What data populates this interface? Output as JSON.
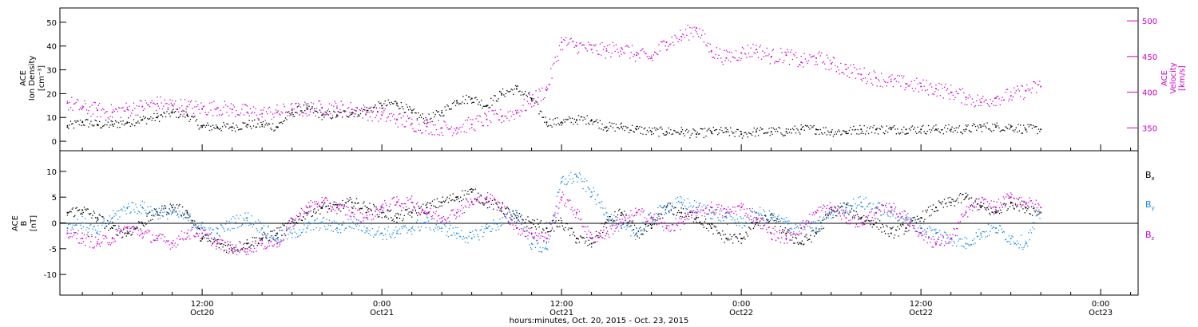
{
  "chart_data": [
    {
      "type": "scatter",
      "panel": "top",
      "title": "",
      "xlabel": "hours:minutes, Oct. 20, 2015 - Oct. 23, 2015",
      "x_unit": "hours since Oct 20 00:00",
      "x_ticks": [
        {
          "x": 12,
          "time": "12:00",
          "date": "Oct20"
        },
        {
          "x": 24,
          "time": "0:00",
          "date": "Oct21"
        },
        {
          "x": 36,
          "time": "12:00",
          "date": "Oct21"
        },
        {
          "x": 48,
          "time": "0:00",
          "date": "Oct22"
        },
        {
          "x": 60,
          "time": "12:00",
          "date": "Oct22"
        },
        {
          "x": 72,
          "time": "0:00",
          "date": "Oct23"
        }
      ],
      "xlim": [
        2.5,
        74.5
      ],
      "left_axis": {
        "label_lines": [
          "ACE",
          "Ion Density",
          "[cm⁻³]"
        ],
        "ylim": [
          -4,
          56
        ],
        "ticks": [
          0,
          10,
          20,
          30,
          40,
          50
        ],
        "color": "#000000"
      },
      "right_axis": {
        "label_lines": [
          "ACE",
          "Velocity",
          "[km/s]"
        ],
        "ylim": [
          318,
          518
        ],
        "ticks": [
          350,
          400,
          450,
          500
        ],
        "color": "#cc00cc"
      },
      "series": [
        {
          "name": "",
          "axis": "left",
          "color": "#000000",
          "x": [
            3,
            4,
            5,
            6,
            7,
            8,
            9,
            10,
            11,
            12,
            13,
            14,
            15,
            16,
            17,
            18,
            19,
            20,
            21,
            22,
            23,
            24,
            25,
            26,
            27,
            28,
            29,
            30,
            31,
            32,
            33,
            34,
            35,
            36,
            37,
            38,
            39,
            40,
            41,
            42,
            43,
            44,
            45,
            46,
            47,
            48,
            49,
            50,
            51,
            52,
            53,
            54,
            55,
            56,
            57,
            58,
            59,
            60,
            61,
            62,
            63,
            64,
            65,
            66,
            67,
            68
          ],
          "values": [
            6,
            8,
            7,
            7,
            8,
            9,
            10,
            12,
            11,
            6,
            6,
            6,
            7,
            7,
            6,
            12,
            14,
            11,
            11,
            12,
            13,
            15,
            16,
            12,
            9,
            12,
            17,
            18,
            15,
            20,
            22,
            18,
            8,
            8,
            9,
            9,
            6,
            6,
            5,
            4,
            4,
            4,
            3,
            4,
            4,
            3,
            4,
            4,
            4,
            5,
            5,
            4,
            4,
            5,
            5,
            5,
            5,
            5,
            5,
            5,
            5,
            6,
            6,
            6,
            5,
            5
          ]
        },
        {
          "name": "",
          "axis": "right",
          "color": "#cc00cc",
          "x": [
            3,
            4,
            5,
            6,
            7,
            8,
            9,
            10,
            11,
            12,
            13,
            14,
            15,
            16,
            17,
            18,
            19,
            20,
            21,
            22,
            23,
            24,
            25,
            26,
            27,
            28,
            29,
            30,
            31,
            32,
            33,
            34,
            35,
            36,
            37,
            38,
            39,
            40,
            41,
            42,
            43,
            44,
            45,
            46,
            47,
            48,
            49,
            50,
            51,
            52,
            53,
            54,
            55,
            56,
            57,
            58,
            59,
            60,
            61,
            62,
            63,
            64,
            65,
            66,
            67,
            68
          ],
          "values": [
            385,
            378,
            375,
            372,
            376,
            380,
            384,
            382,
            380,
            377,
            378,
            376,
            372,
            370,
            372,
            375,
            376,
            378,
            378,
            376,
            372,
            368,
            362,
            356,
            352,
            350,
            350,
            355,
            362,
            366,
            372,
            388,
            403,
            470,
            465,
            460,
            458,
            462,
            452,
            448,
            470,
            478,
            490,
            458,
            448,
            455,
            460,
            450,
            452,
            442,
            448,
            440,
            432,
            425,
            420,
            415,
            412,
            408,
            405,
            400,
            393,
            386,
            392,
            395,
            402,
            408
          ]
        }
      ]
    },
    {
      "type": "scatter",
      "panel": "bottom",
      "title": "",
      "xlabel": "hours:minutes, Oct. 20, 2015 - Oct. 23, 2015",
      "xlim": [
        2.5,
        74.5
      ],
      "left_axis": {
        "label_lines": [
          "ACE",
          "B",
          "[nT]"
        ],
        "ylim": [
          -14,
          14
        ],
        "ticks": [
          -10,
          -5,
          0,
          5,
          10
        ],
        "zero_line": true
      },
      "series": [
        {
          "name": "Bx",
          "color": "#000000",
          "x": [
            3,
            4,
            5,
            6,
            7,
            8,
            9,
            10,
            11,
            12,
            13,
            14,
            15,
            16,
            17,
            18,
            19,
            20,
            21,
            22,
            23,
            24,
            25,
            26,
            27,
            28,
            29,
            30,
            31,
            32,
            33,
            34,
            35,
            36,
            37,
            38,
            39,
            40,
            41,
            42,
            43,
            44,
            45,
            46,
            47,
            48,
            49,
            50,
            51,
            52,
            53,
            54,
            55,
            56,
            57,
            58,
            59,
            60,
            61,
            62,
            63,
            64,
            65,
            66,
            67,
            68
          ],
          "values": [
            2,
            2.5,
            1,
            -1,
            -2,
            0,
            2,
            3,
            2,
            -3,
            -4,
            -5,
            -4,
            -3,
            -2,
            0,
            2,
            3,
            3,
            4,
            3,
            2,
            1,
            2,
            3,
            4,
            5,
            6,
            4,
            3,
            1,
            0,
            -1,
            0,
            -3,
            -4,
            0,
            2,
            -2,
            -1,
            3,
            2,
            1,
            -1,
            -3,
            -3,
            0,
            1,
            -2,
            -4,
            -2,
            2,
            3,
            1,
            0,
            -2,
            -1,
            1,
            3,
            4,
            5,
            3,
            2,
            4,
            3,
            2
          ]
        },
        {
          "name": "By",
          "color": "#1a8ae0",
          "x": [
            3,
            4,
            5,
            6,
            7,
            8,
            9,
            10,
            11,
            12,
            13,
            14,
            15,
            16,
            17,
            18,
            19,
            20,
            21,
            22,
            23,
            24,
            25,
            26,
            27,
            28,
            29,
            30,
            31,
            32,
            33,
            34,
            35,
            36,
            37,
            38,
            39,
            40,
            41,
            42,
            43,
            44,
            45,
            46,
            47,
            48,
            49,
            50,
            51,
            52,
            53,
            54,
            55,
            56,
            57,
            58,
            59,
            60,
            61,
            62,
            63,
            64,
            65,
            66,
            67,
            68
          ],
          "values": [
            -1,
            0,
            -2,
            1,
            3,
            3,
            2,
            2,
            1,
            -1,
            -2,
            0,
            1,
            -1,
            -3,
            -2,
            -1,
            0,
            -1,
            0,
            -1,
            -2,
            -2,
            -1,
            0,
            -1,
            -2,
            -3,
            -1,
            0,
            2,
            -4,
            -5,
            8,
            9,
            6,
            2,
            -1,
            -2,
            1,
            3,
            4,
            3,
            2,
            1,
            0,
            2,
            1,
            0,
            -1,
            -1,
            2,
            3,
            4,
            3,
            2,
            1,
            -1,
            -2,
            -3,
            -4,
            -2,
            -1,
            -3,
            -4,
            2
          ]
        },
        {
          "name": "Bz",
          "color": "#cc00cc",
          "x": [
            3,
            4,
            5,
            6,
            7,
            8,
            9,
            10,
            11,
            12,
            13,
            14,
            15,
            16,
            17,
            18,
            19,
            20,
            21,
            22,
            23,
            24,
            25,
            26,
            27,
            28,
            29,
            30,
            31,
            32,
            33,
            34,
            35,
            36,
            37,
            38,
            39,
            40,
            41,
            42,
            43,
            44,
            45,
            46,
            47,
            48,
            49,
            50,
            51,
            52,
            53,
            54,
            55,
            56,
            57,
            58,
            59,
            60,
            61,
            62,
            63,
            64,
            65,
            66,
            67,
            68
          ],
          "values": [
            -2,
            -3,
            -4,
            -3,
            -1,
            -2,
            -3,
            -4,
            -2,
            -2,
            -4,
            -5,
            -5,
            -4,
            -4,
            0,
            3,
            4,
            3,
            2,
            1,
            3,
            4,
            4,
            2,
            1,
            2,
            4,
            5,
            3,
            -1,
            -2,
            -3,
            5,
            2,
            -3,
            -2,
            0,
            2,
            1,
            -1,
            0,
            2,
            3,
            2,
            3,
            1,
            -2,
            -3,
            -1,
            2,
            3,
            1,
            0,
            2,
            3,
            1,
            -2,
            -4,
            -3,
            2,
            4,
            3,
            5,
            4,
            3
          ]
        }
      ]
    }
  ]
}
